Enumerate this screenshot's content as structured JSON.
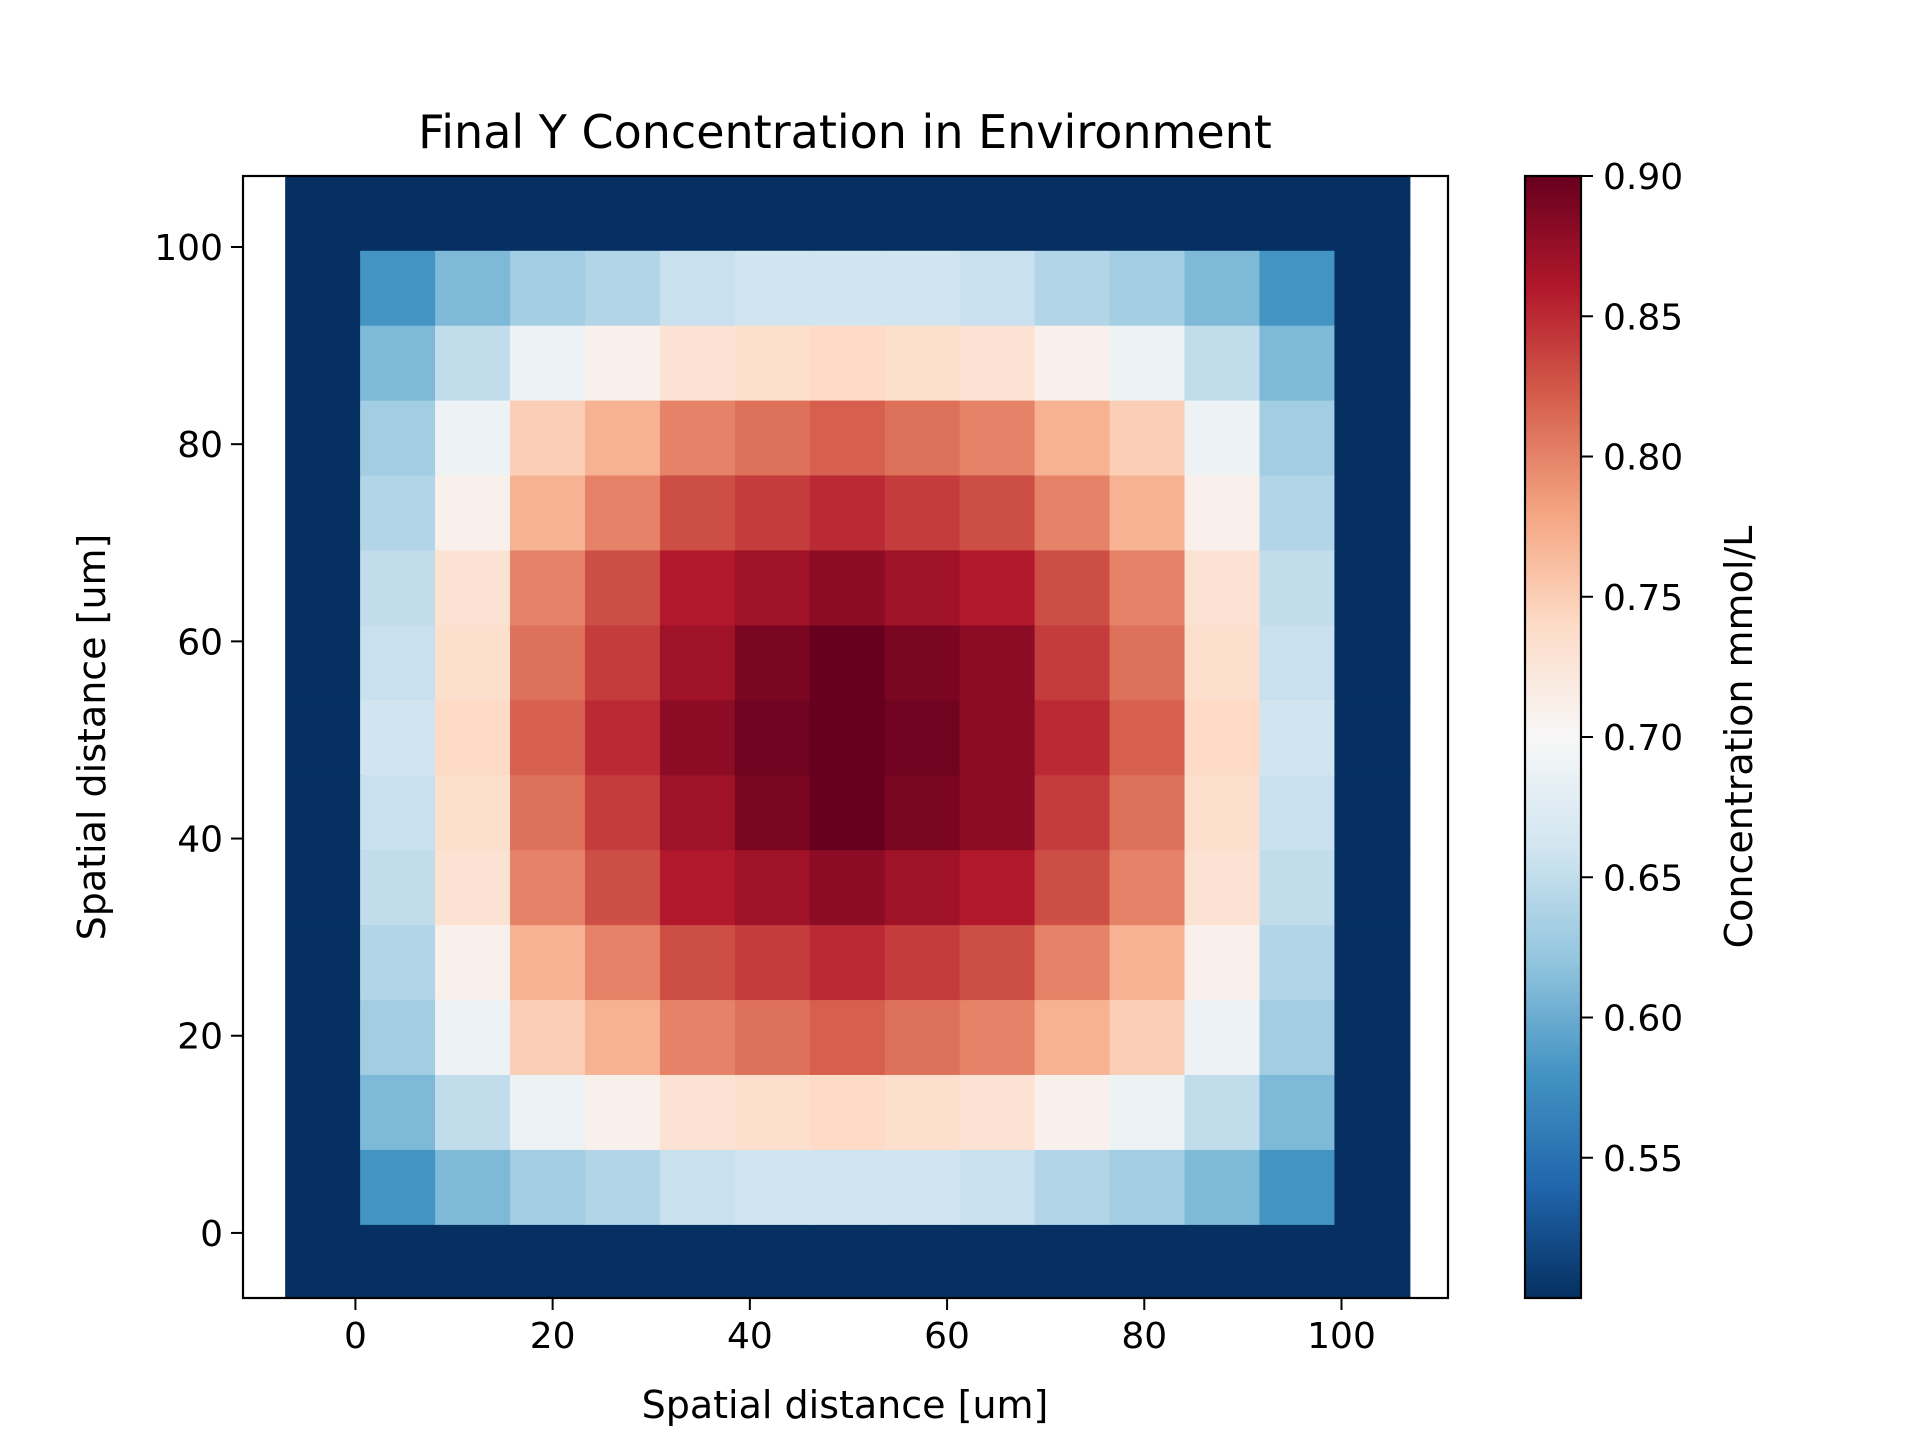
{
  "chart_data": {
    "type": "heatmap",
    "title": "Final Y Concentration in Environment",
    "xlabel": "Spatial distance [um]",
    "ylabel": "Spatial distance [um]",
    "colorbar_label": "Concentration mmol/L",
    "colormap": "RdBu_r",
    "color_range": [
      0.5,
      0.9
    ],
    "xlim": [
      -11.4,
      110.8
    ],
    "ylim": [
      -6.6,
      107.2
    ],
    "x_ticks": [
      {
        "value": 0,
        "label": "0"
      },
      {
        "value": 20,
        "label": "20"
      },
      {
        "value": 40,
        "label": "40"
      },
      {
        "value": 60,
        "label": "60"
      },
      {
        "value": 80,
        "label": "80"
      },
      {
        "value": 100,
        "label": "100"
      }
    ],
    "y_ticks": [
      {
        "value": 0,
        "label": "0"
      },
      {
        "value": 20,
        "label": "20"
      },
      {
        "value": 40,
        "label": "40"
      },
      {
        "value": 60,
        "label": "60"
      },
      {
        "value": 80,
        "label": "80"
      },
      {
        "value": 100,
        "label": "100"
      }
    ],
    "colorbar_ticks": [
      {
        "value": 0.55,
        "label": "0.55"
      },
      {
        "value": 0.6,
        "label": "0.60"
      },
      {
        "value": 0.65,
        "label": "0.65"
      },
      {
        "value": 0.7,
        "label": "0.70"
      },
      {
        "value": 0.75,
        "label": "0.75"
      },
      {
        "value": 0.8,
        "label": "0.80"
      },
      {
        "value": 0.85,
        "label": "0.85"
      },
      {
        "value": 0.9,
        "label": "0.90"
      }
    ],
    "grid_x_edges": [
      -7.1,
      0.5,
      8.1,
      15.7,
      23.3,
      30.9,
      38.5,
      46.1,
      53.7,
      61.3,
      68.9,
      76.5,
      84.1,
      91.7,
      99.3,
      106.9
    ],
    "grid_y_edges": [
      -6.6,
      0.9,
      8.5,
      16.1,
      23.7,
      31.3,
      38.9,
      46.5,
      54.1,
      61.7,
      69.3,
      76.9,
      84.5,
      92.1,
      99.7,
      107.2
    ],
    "grid_values": [
      [
        0.5,
        0.5,
        0.5,
        0.5,
        0.5,
        0.5,
        0.5,
        0.5,
        0.5,
        0.5,
        0.5,
        0.5,
        0.5,
        0.5,
        0.5
      ],
      [
        0.5,
        0.58,
        0.61,
        0.63,
        0.64,
        0.655,
        0.66,
        0.66,
        0.66,
        0.655,
        0.64,
        0.63,
        0.61,
        0.58,
        0.5
      ],
      [
        0.5,
        0.61,
        0.65,
        0.69,
        0.71,
        0.73,
        0.735,
        0.74,
        0.735,
        0.73,
        0.71,
        0.69,
        0.65,
        0.61,
        0.5
      ],
      [
        0.5,
        0.63,
        0.69,
        0.75,
        0.77,
        0.8,
        0.81,
        0.82,
        0.81,
        0.8,
        0.77,
        0.75,
        0.69,
        0.63,
        0.5
      ],
      [
        0.5,
        0.64,
        0.71,
        0.77,
        0.8,
        0.83,
        0.84,
        0.85,
        0.84,
        0.83,
        0.8,
        0.77,
        0.71,
        0.64,
        0.5
      ],
      [
        0.5,
        0.65,
        0.73,
        0.8,
        0.83,
        0.86,
        0.87,
        0.88,
        0.87,
        0.86,
        0.83,
        0.8,
        0.73,
        0.65,
        0.5
      ],
      [
        0.5,
        0.655,
        0.735,
        0.81,
        0.84,
        0.87,
        0.89,
        0.9,
        0.89,
        0.88,
        0.84,
        0.81,
        0.735,
        0.655,
        0.5
      ],
      [
        0.5,
        0.66,
        0.74,
        0.82,
        0.85,
        0.88,
        0.895,
        0.9,
        0.895,
        0.88,
        0.85,
        0.82,
        0.74,
        0.66,
        0.5
      ],
      [
        0.5,
        0.655,
        0.735,
        0.81,
        0.84,
        0.87,
        0.89,
        0.9,
        0.89,
        0.88,
        0.84,
        0.81,
        0.735,
        0.655,
        0.5
      ],
      [
        0.5,
        0.65,
        0.73,
        0.8,
        0.83,
        0.86,
        0.87,
        0.88,
        0.87,
        0.86,
        0.83,
        0.8,
        0.73,
        0.65,
        0.5
      ],
      [
        0.5,
        0.64,
        0.71,
        0.77,
        0.8,
        0.83,
        0.84,
        0.85,
        0.84,
        0.83,
        0.8,
        0.77,
        0.71,
        0.64,
        0.5
      ],
      [
        0.5,
        0.63,
        0.69,
        0.75,
        0.77,
        0.8,
        0.81,
        0.82,
        0.81,
        0.8,
        0.77,
        0.75,
        0.69,
        0.63,
        0.5
      ],
      [
        0.5,
        0.61,
        0.65,
        0.69,
        0.71,
        0.73,
        0.735,
        0.74,
        0.735,
        0.73,
        0.71,
        0.69,
        0.65,
        0.61,
        0.5
      ],
      [
        0.5,
        0.58,
        0.61,
        0.63,
        0.64,
        0.655,
        0.66,
        0.66,
        0.66,
        0.655,
        0.64,
        0.63,
        0.61,
        0.58,
        0.5
      ],
      [
        0.5,
        0.5,
        0.5,
        0.5,
        0.5,
        0.5,
        0.5,
        0.5,
        0.5,
        0.5,
        0.5,
        0.5,
        0.5,
        0.5,
        0.5
      ]
    ]
  }
}
